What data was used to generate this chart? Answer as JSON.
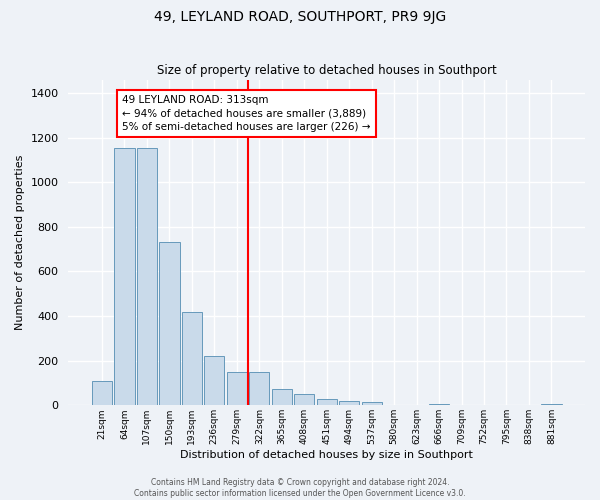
{
  "title": "49, LEYLAND ROAD, SOUTHPORT, PR9 9JG",
  "subtitle": "Size of property relative to detached houses in Southport",
  "xlabel": "Distribution of detached houses by size in Southport",
  "ylabel": "Number of detached properties",
  "bar_color": "#c9daea",
  "bar_edge_color": "#6699bb",
  "background_color": "#eef2f7",
  "grid_color": "#ffffff",
  "bin_labels": [
    "21sqm",
    "64sqm",
    "107sqm",
    "150sqm",
    "193sqm",
    "236sqm",
    "279sqm",
    "322sqm",
    "365sqm",
    "408sqm",
    "451sqm",
    "494sqm",
    "537sqm",
    "580sqm",
    "623sqm",
    "666sqm",
    "709sqm",
    "752sqm",
    "795sqm",
    "838sqm",
    "881sqm"
  ],
  "bar_heights": [
    107,
    1155,
    1155,
    730,
    418,
    220,
    147,
    147,
    72,
    50,
    30,
    20,
    13,
    0,
    0,
    7,
    0,
    0,
    0,
    0,
    7
  ],
  "ylim": [
    0,
    1460
  ],
  "yticks": [
    0,
    200,
    400,
    600,
    800,
    1000,
    1200,
    1400
  ],
  "red_line_x": 7.5,
  "annotation_title": "49 LEYLAND ROAD: 313sqm",
  "annotation_line1": "← 94% of detached houses are smaller (3,889)",
  "annotation_line2": "5% of semi-detached houses are larger (226) →",
  "footer1": "Contains HM Land Registry data © Crown copyright and database right 2024.",
  "footer2": "Contains public sector information licensed under the Open Government Licence v3.0."
}
